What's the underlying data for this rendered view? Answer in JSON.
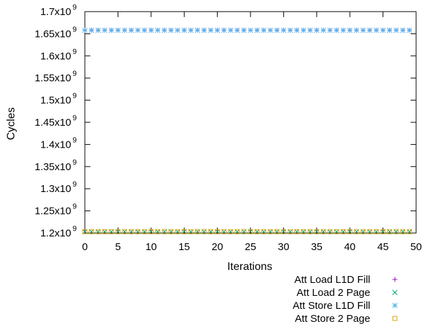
{
  "chart_data": {
    "type": "scatter",
    "title": "",
    "xlabel": "Iterations",
    "ylabel": "Cycles",
    "xlim": [
      0,
      50
    ],
    "ylim": [
      1200000000,
      1700000000
    ],
    "x_ticks": [
      0,
      5,
      10,
      15,
      20,
      25,
      30,
      35,
      40,
      45,
      50
    ],
    "y_ticks": [
      {
        "value": 1200000000,
        "mantissa": "1.2x10",
        "exp": "9"
      },
      {
        "value": 1250000000,
        "mantissa": "1.25x10",
        "exp": "9"
      },
      {
        "value": 1300000000,
        "mantissa": "1.3x10",
        "exp": "9"
      },
      {
        "value": 1350000000,
        "mantissa": "1.35x10",
        "exp": "9"
      },
      {
        "value": 1400000000,
        "mantissa": "1.4x10",
        "exp": "9"
      },
      {
        "value": 1450000000,
        "mantissa": "1.45x10",
        "exp": "9"
      },
      {
        "value": 1500000000,
        "mantissa": "1.5x10",
        "exp": "9"
      },
      {
        "value": 1550000000,
        "mantissa": "1.55x10",
        "exp": "9"
      },
      {
        "value": 1600000000,
        "mantissa": "1.6x10",
        "exp": "9"
      },
      {
        "value": 1650000000,
        "mantissa": "1.65x10",
        "exp": "9"
      },
      {
        "value": 1700000000,
        "mantissa": "1.7x10",
        "exp": "9"
      }
    ],
    "grid": false,
    "legend_position": "bottom-right",
    "series": [
      {
        "name": "Att Load L1D Fill",
        "marker": "plus",
        "color": "#9400d3",
        "x_range": [
          0,
          49
        ],
        "y": 1658000000
      },
      {
        "name": "Att Load 2 Page",
        "marker": "cross",
        "color": "#009e73",
        "x_range": [
          0,
          49
        ],
        "y": 1203000000
      },
      {
        "name": "Att Store L1D Fill",
        "marker": "star",
        "color": "#56b4e9",
        "x_range": [
          0,
          49
        ],
        "y": 1658000000
      },
      {
        "name": "Att Store 2 Page",
        "marker": "square",
        "color": "#e69f00",
        "x_range": [
          0,
          49
        ],
        "y": 1203000000
      }
    ]
  }
}
